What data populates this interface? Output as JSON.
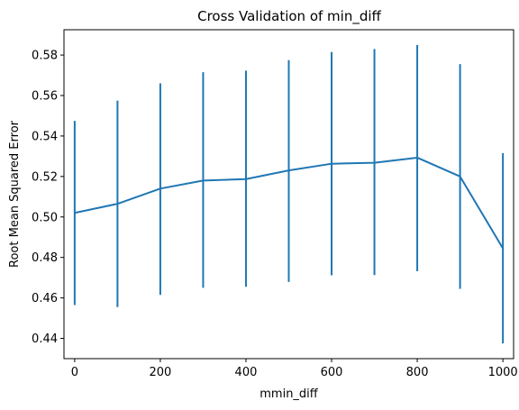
{
  "chart_data": {
    "type": "line",
    "title": "Cross Validation of min_diff",
    "xlabel": "mmin_diff",
    "ylabel": "Root Mean Squared Error",
    "x": [
      0,
      100,
      200,
      300,
      400,
      500,
      600,
      700,
      800,
      900,
      1000
    ],
    "series": [
      {
        "values": [
          0.502,
          0.5065,
          0.514,
          0.518,
          0.5187,
          0.523,
          0.5263,
          0.5268,
          0.5293,
          0.52,
          0.4845
        ],
        "error_low": [
          0.4565,
          0.4555,
          0.4615,
          0.465,
          0.4655,
          0.4679,
          0.4712,
          0.4713,
          0.4732,
          0.4645,
          0.4375
        ],
        "error_high": [
          0.5475,
          0.5575,
          0.566,
          0.5715,
          0.5723,
          0.5775,
          0.5815,
          0.583,
          0.585,
          0.5755,
          0.5315
        ],
        "color": "#1f77b4"
      }
    ],
    "xlim": [
      -25,
      1025
    ],
    "ylim": [
      0.43,
      0.5925
    ],
    "xticks": [
      0,
      200,
      400,
      600,
      800,
      1000
    ],
    "yticks": [
      0.44,
      0.46,
      0.48,
      0.5,
      0.52,
      0.54,
      0.56,
      0.58
    ],
    "ytick_labels": [
      "0.44",
      "0.46",
      "0.48",
      "0.50",
      "0.52",
      "0.54",
      "0.56",
      "0.58"
    ],
    "grid": false,
    "legend": "none"
  }
}
